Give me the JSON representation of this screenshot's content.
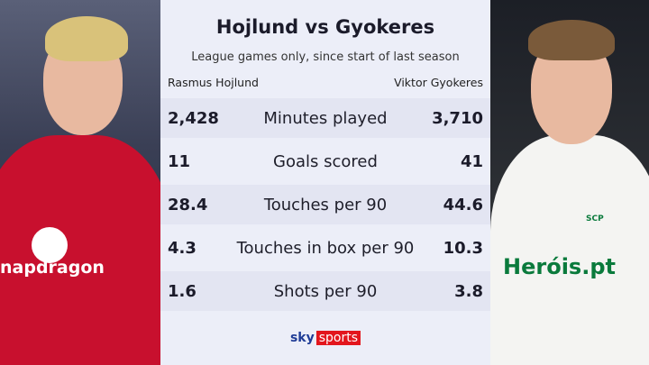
{
  "title": "Hojlund vs Gyokeres",
  "subtitle": "League games only, since start of last season",
  "players": {
    "left": "Rasmus Hojlund",
    "right": "Viktor Gyokeres"
  },
  "rows": [
    {
      "label": "Minutes played",
      "left": "2,428",
      "right": "3,710"
    },
    {
      "label": "Goals scored",
      "left": "11",
      "right": "41"
    },
    {
      "label": "Touches per 90",
      "left": "28.4",
      "right": "44.6"
    },
    {
      "label": "Touches in box per 90",
      "left": "4.3",
      "right": "10.3"
    },
    {
      "label": "Shots per 90",
      "left": "1.6",
      "right": "3.8"
    }
  ],
  "logo": {
    "sky": "sky",
    "sports": "sports"
  },
  "photos": {
    "left_sponsor": "napdragon",
    "right_sponsor": "Heróis.pt",
    "right_crest": "SCP"
  },
  "colors": {
    "sky_red": "#e3161d",
    "sky_blue": "#1f3c96",
    "united_red": "#c8102e",
    "sporting_green": "#0a7a3c"
  }
}
